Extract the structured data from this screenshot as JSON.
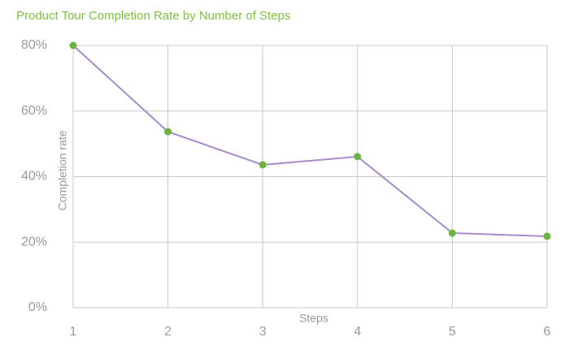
{
  "chart_data": {
    "type": "line",
    "title": "Product Tour Completion Rate by Number of Steps",
    "x_label": "Steps",
    "y_label": "Completion rate",
    "x": [
      1,
      2,
      3,
      4,
      5,
      6
    ],
    "values": [
      80,
      53.7,
      43.6,
      46.1,
      22.8,
      21.8
    ],
    "line_color": "#a58bc9",
    "marker_color": "#6db33f",
    "title_color": "#7cc242",
    "xlim": [
      1,
      6
    ],
    "xticks": [
      1,
      2,
      3,
      4,
      5,
      6
    ],
    "ylim": [
      0,
      80
    ],
    "yticks": [
      {
        "value": 0,
        "label": "0%"
      },
      {
        "value": 20,
        "label": "20%"
      },
      {
        "value": 40,
        "label": "40%"
      },
      {
        "value": 60,
        "label": "60%"
      },
      {
        "value": 80,
        "label": "80%"
      }
    ],
    "grid": true
  }
}
